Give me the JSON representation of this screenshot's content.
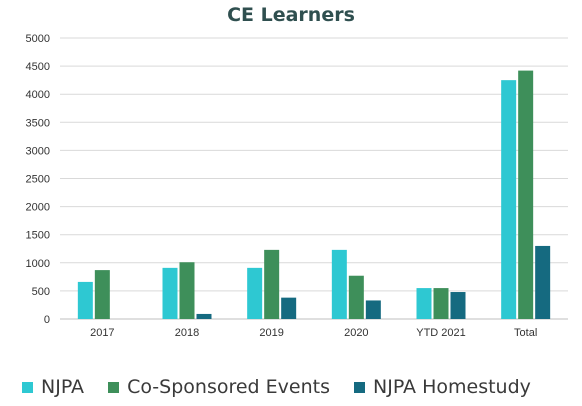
{
  "chart_data": {
    "type": "bar",
    "title": "CE Learners",
    "xlabel": "",
    "ylabel": "",
    "categories": [
      "2017",
      "2018",
      "2019",
      "2020",
      "YTD 2021",
      "Total"
    ],
    "series": [
      {
        "name": "NJPA",
        "color": "#2ec8d2",
        "values": [
          660,
          910,
          910,
          1230,
          550,
          4250
        ]
      },
      {
        "name": "Co-Sponsored Events",
        "color": "#3e8f5a",
        "values": [
          870,
          1010,
          1230,
          770,
          550,
          4420
        ]
      },
      {
        "name": "NJPA Homestudy",
        "color": "#156a80",
        "values": [
          0,
          90,
          380,
          330,
          480,
          1300
        ]
      }
    ],
    "ylim": [
      0,
      5000
    ],
    "yticks": [
      "0",
      "500",
      "1000",
      "1500",
      "2000",
      "2500",
      "3000",
      "3500",
      "4000",
      "4500",
      "5000"
    ],
    "grid": true,
    "legend_position": "bottom"
  }
}
